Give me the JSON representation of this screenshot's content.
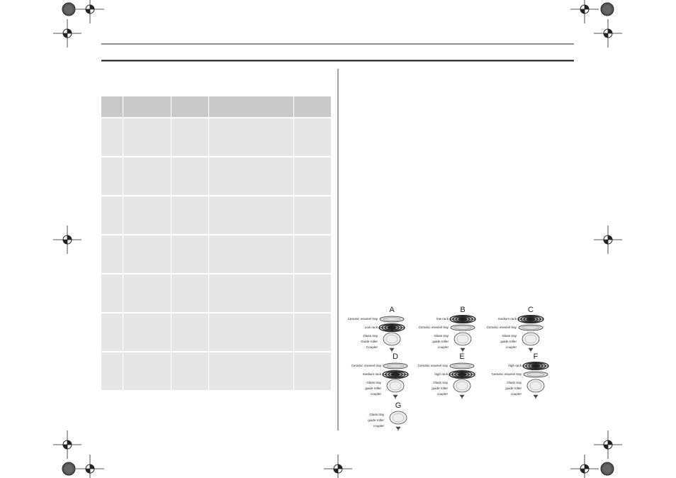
{
  "diagrams": [
    {
      "letter": "A",
      "parts": [
        "Ceramic enamel tray",
        "Low rack",
        "Glass tray",
        "Guide roller",
        "Coupler"
      ]
    },
    {
      "letter": "B",
      "parts": [
        "low rack",
        "Ceramic enamel tray",
        "Glass tray",
        "guide roller",
        "coupler"
      ]
    },
    {
      "letter": "C",
      "parts": [
        "medium rack",
        "Ceramic enamel tray",
        "Glass tray",
        "guide roller",
        "coupler"
      ]
    },
    {
      "letter": "D",
      "parts": [
        "Ceramic enamel tray",
        "medium rack",
        "Glass tray",
        "guide roller",
        "coupler"
      ]
    },
    {
      "letter": "E",
      "parts": [
        "Ceramic enamel tray",
        "high rack",
        "Glass tray",
        "guide roller",
        "coupler"
      ]
    },
    {
      "letter": "F",
      "parts": [
        "high rack",
        "Ceramic enamel tray",
        "Glass tray",
        "guide roller",
        "coupler"
      ]
    },
    {
      "letter": "G",
      "parts": [
        "Glass tray",
        "guide roller",
        "coupler"
      ]
    }
  ]
}
